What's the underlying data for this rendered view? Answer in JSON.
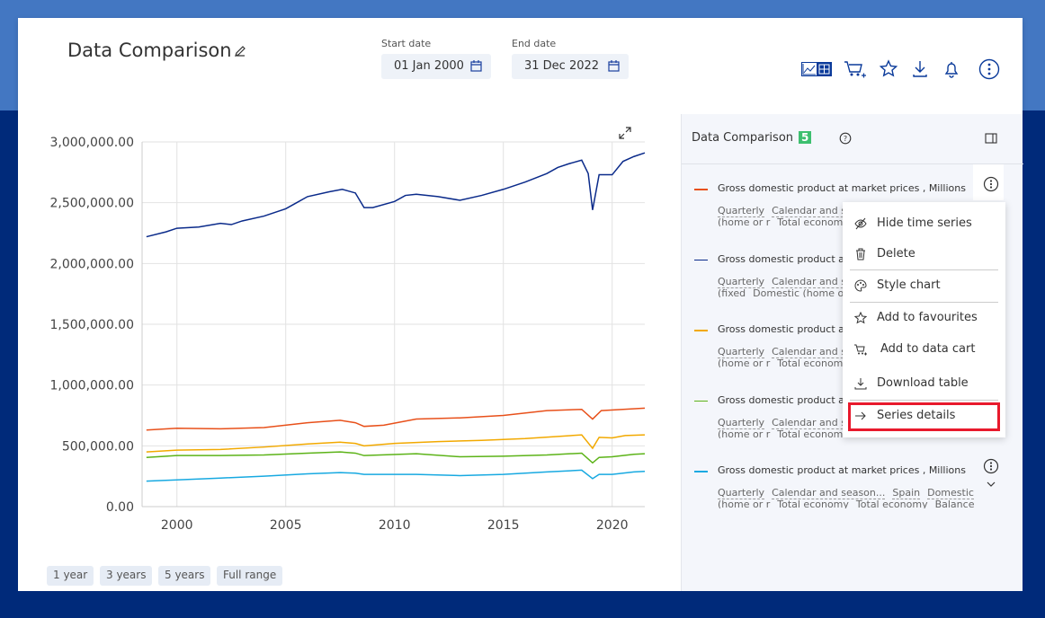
{
  "header": {
    "title": "Data Comparison",
    "start_label": "Start date",
    "start_value": "01 Jan 2000",
    "end_label": "End date",
    "end_value": "31 Dec 2022",
    "icons": [
      "chart-table-toggle-icon",
      "cart-plus-icon",
      "star-icon",
      "download-icon",
      "bell-icon",
      "more-vertical-icon"
    ]
  },
  "side": {
    "title": "Data Comparison",
    "count": "5",
    "items": [
      {
        "name": "Gross domestic product at market prices , Millions",
        "color": "#e8501a",
        "tags": [
          "Quarterly",
          "Calendar and se"
        ],
        "tags2": [
          "(home or r",
          "Total econom"
        ]
      },
      {
        "name": "Gross domestic product at m",
        "color": "#0a2a8a",
        "tags": [
          "Quarterly",
          "Calendar and se"
        ],
        "tags2": [
          "(fixed",
          "Domestic (home o"
        ]
      },
      {
        "name": "Gross domestic product at m",
        "color": "#f2a900",
        "tags": [
          "Quarterly",
          "Calendar and se"
        ],
        "tags2": [
          "(home or r",
          "Total econom"
        ]
      },
      {
        "name": "Gross domestic product at m",
        "color": "#5cb318",
        "tags": [
          "Quarterly",
          "Calendar and se"
        ],
        "tags2": [
          "(home or r",
          "Total econom"
        ]
      },
      {
        "name": "Gross domestic product at market prices , Millions",
        "color": "#17a9e1",
        "tags": [
          "Quarterly",
          "Calendar and season...",
          "Spain",
          "Domestic"
        ],
        "tags2": [
          "(home or r",
          "Total economy",
          "Total economy",
          "Balance"
        ]
      }
    ]
  },
  "menu": {
    "items": [
      "Hide time series",
      "Delete",
      "Style chart",
      "Add to favourites",
      "Add to data cart",
      "Download table",
      "Series details"
    ]
  },
  "range_buttons": [
    "1 year",
    "3 years",
    "5 years",
    "Full range"
  ],
  "chart_data": {
    "type": "line",
    "title": "",
    "xlabel": "",
    "ylabel": "",
    "xlim": [
      1998.4,
      2021.5
    ],
    "ylim": [
      0,
      3000000
    ],
    "grid": true,
    "xticks": [
      2000,
      2005,
      2010,
      2015,
      2020
    ],
    "yticks": [
      0,
      500000,
      1000000,
      1500000,
      2000000,
      2500000,
      3000000
    ],
    "ytick_labels": [
      "0.00",
      "500,000.00",
      "1,000,000.00",
      "1,500,000.00",
      "2,000,000.00",
      "2,500,000.00",
      "3,000,000.00"
    ],
    "series": [
      {
        "color": "#0a2a8a",
        "points": [
          [
            1998.6,
            2220000
          ],
          [
            1999.5,
            2260000
          ],
          [
            2000,
            2290000
          ],
          [
            2001,
            2300000
          ],
          [
            2002,
            2330000
          ],
          [
            2002.5,
            2320000
          ],
          [
            2003,
            2350000
          ],
          [
            2004,
            2390000
          ],
          [
            2005,
            2450000
          ],
          [
            2005.5,
            2500000
          ],
          [
            2006,
            2550000
          ],
          [
            2007,
            2590000
          ],
          [
            2007.6,
            2610000
          ],
          [
            2008.2,
            2580000
          ],
          [
            2008.6,
            2460000
          ],
          [
            2009,
            2460000
          ],
          [
            2010,
            2510000
          ],
          [
            2010.5,
            2560000
          ],
          [
            2011,
            2570000
          ],
          [
            2012,
            2550000
          ],
          [
            2013,
            2520000
          ],
          [
            2014,
            2560000
          ],
          [
            2015,
            2610000
          ],
          [
            2016,
            2670000
          ],
          [
            2017,
            2740000
          ],
          [
            2017.5,
            2790000
          ],
          [
            2018,
            2820000
          ],
          [
            2018.6,
            2850000
          ],
          [
            2018.9,
            2740000
          ],
          [
            2019.1,
            2440000
          ],
          [
            2019.4,
            2730000
          ],
          [
            2020,
            2730000
          ],
          [
            2020.5,
            2840000
          ],
          [
            2021,
            2880000
          ],
          [
            2021.5,
            2910000
          ]
        ]
      },
      {
        "color": "#e8501a",
        "points": [
          [
            1998.6,
            630000
          ],
          [
            2000,
            645000
          ],
          [
            2002,
            640000
          ],
          [
            2004,
            650000
          ],
          [
            2006,
            690000
          ],
          [
            2007.5,
            710000
          ],
          [
            2008.2,
            690000
          ],
          [
            2008.6,
            660000
          ],
          [
            2009.5,
            670000
          ],
          [
            2011,
            720000
          ],
          [
            2013,
            730000
          ],
          [
            2015,
            750000
          ],
          [
            2017,
            790000
          ],
          [
            2018.6,
            800000
          ],
          [
            2019.1,
            720000
          ],
          [
            2019.5,
            790000
          ],
          [
            2020.5,
            800000
          ],
          [
            2021.5,
            810000
          ]
        ]
      },
      {
        "color": "#f2a900",
        "points": [
          [
            1998.6,
            450000
          ],
          [
            2000,
            465000
          ],
          [
            2002,
            470000
          ],
          [
            2004,
            490000
          ],
          [
            2006,
            515000
          ],
          [
            2007.5,
            530000
          ],
          [
            2008.2,
            520000
          ],
          [
            2008.6,
            500000
          ],
          [
            2010,
            520000
          ],
          [
            2012,
            535000
          ],
          [
            2014,
            545000
          ],
          [
            2016,
            560000
          ],
          [
            2018.6,
            590000
          ],
          [
            2019.1,
            480000
          ],
          [
            2019.4,
            570000
          ],
          [
            2020,
            565000
          ],
          [
            2020.6,
            585000
          ],
          [
            2021.5,
            590000
          ]
        ]
      },
      {
        "color": "#5cb318",
        "points": [
          [
            1998.6,
            405000
          ],
          [
            2000,
            420000
          ],
          [
            2002,
            420000
          ],
          [
            2004,
            425000
          ],
          [
            2006,
            440000
          ],
          [
            2007.5,
            450000
          ],
          [
            2008.2,
            440000
          ],
          [
            2008.6,
            420000
          ],
          [
            2011,
            435000
          ],
          [
            2013,
            410000
          ],
          [
            2015,
            415000
          ],
          [
            2017,
            425000
          ],
          [
            2018.6,
            440000
          ],
          [
            2019.1,
            360000
          ],
          [
            2019.4,
            405000
          ],
          [
            2020,
            410000
          ],
          [
            2021,
            430000
          ],
          [
            2021.5,
            435000
          ]
        ]
      },
      {
        "color": "#17a9e1",
        "points": [
          [
            1998.6,
            210000
          ],
          [
            2000,
            220000
          ],
          [
            2002,
            235000
          ],
          [
            2004,
            250000
          ],
          [
            2006,
            270000
          ],
          [
            2007.5,
            280000
          ],
          [
            2008.2,
            275000
          ],
          [
            2008.6,
            265000
          ],
          [
            2011,
            265000
          ],
          [
            2013,
            255000
          ],
          [
            2015,
            265000
          ],
          [
            2017,
            285000
          ],
          [
            2018.6,
            300000
          ],
          [
            2019.1,
            230000
          ],
          [
            2019.4,
            265000
          ],
          [
            2020,
            265000
          ],
          [
            2021,
            285000
          ],
          [
            2021.5,
            290000
          ]
        ]
      }
    ]
  }
}
